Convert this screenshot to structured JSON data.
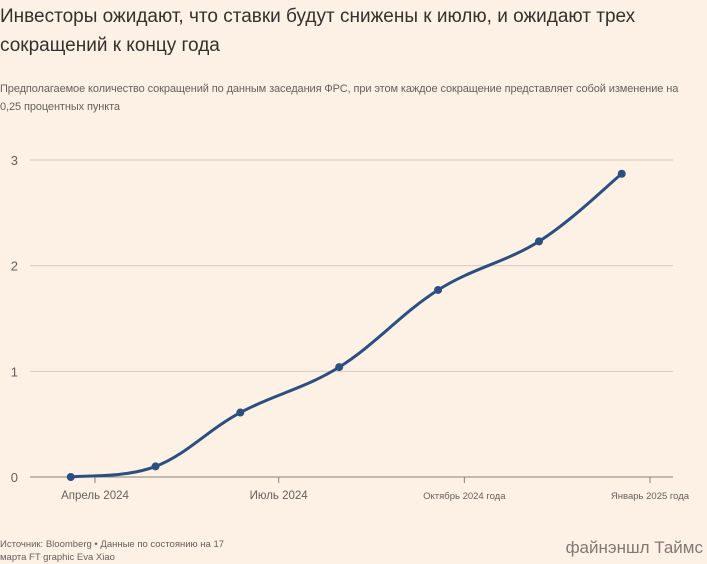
{
  "header": {
    "title": "Инвесторы ожидают, что ставки будут снижены к июлю, и ожидают трех сокращений к концу года",
    "subtitle": "Предполагаемое количество сокращений по данным заседания ФРС, при этом каждое сокращение представляет собой изменение на 0,25 процентных пункта"
  },
  "chart_data": {
    "type": "line",
    "title": "Инвесторы ожидают, что ставки будут снижены к июлю, и ожидают трех сокращений к концу года",
    "subtitle": "Предполагаемое количество сокращений по данным заседания ФРС, при этом каждое сокращение представляет собой изменение на 0,25 процентных пункта",
    "xlabel": "",
    "ylabel": "",
    "x": [
      "2024-03-20",
      "2024-05-01",
      "2024-06-12",
      "2024-07-31",
      "2024-09-18",
      "2024-11-07",
      "2024-12-18"
    ],
    "series": [
      {
        "values": [
          0.0,
          0.1,
          0.61,
          1.04,
          1.77,
          2.23,
          2.87
        ]
      }
    ],
    "x_ticks": [
      {
        "date": "2024-04-01",
        "label": "Апрель 2024"
      },
      {
        "date": "2024-07-01",
        "label": "Июль 2024"
      },
      {
        "date": "2024-10-01",
        "label": "Октябрь 2024 года"
      },
      {
        "date": "2025-01-01",
        "label": "Январь 2025 года"
      }
    ],
    "y_ticks": [
      0,
      1,
      2,
      3
    ],
    "ylim": [
      0,
      3
    ],
    "grid": true,
    "line_color": "#2b4f81",
    "grid_color": "#d9cbbe"
  },
  "footer": {
    "source": "Источник: Bloomberg • Данные по состоянию на 17 марта FT graphic Eva Xiao",
    "brand": "файнэншл Таймс"
  }
}
